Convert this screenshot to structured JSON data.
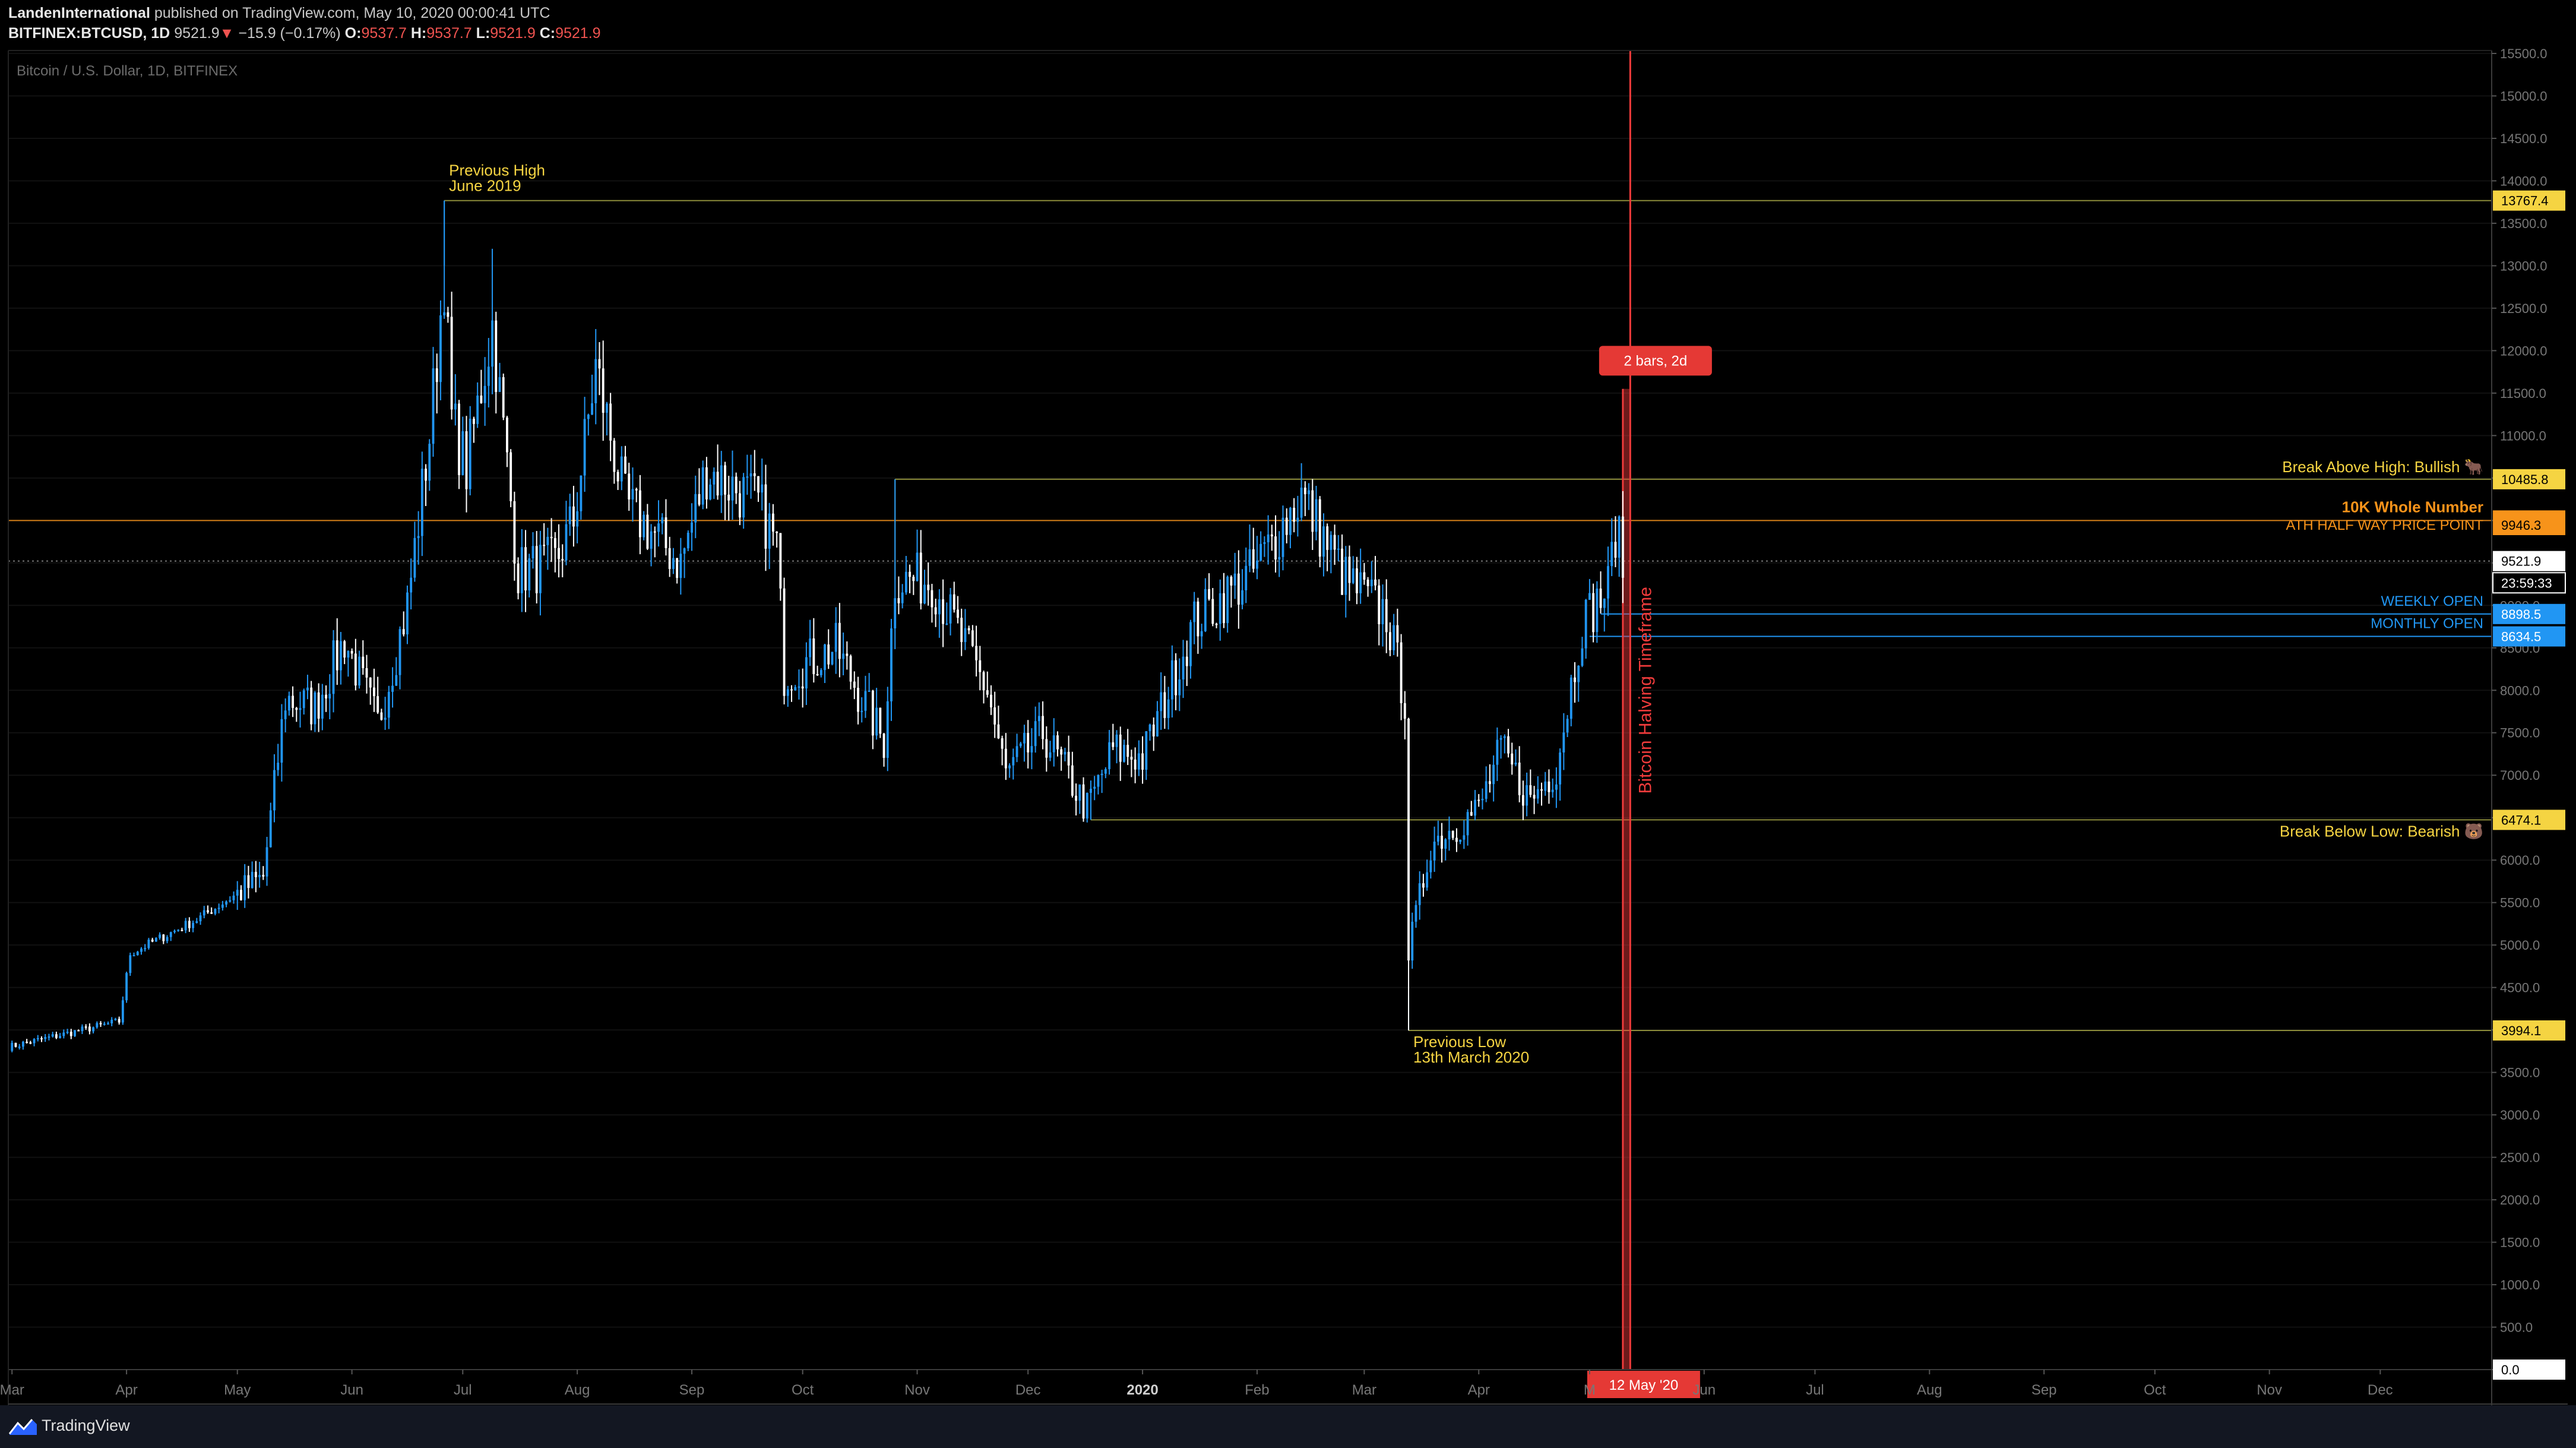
{
  "header": {
    "author": "LandenInternational",
    "published_text": "published on TradingView.com, May 10, 2020 00:00:41 UTC",
    "symbol": "BITFINEX:BTCUSD, 1D",
    "last": "9521.9",
    "change_arrow": "▼",
    "change": "−15.9 (−0.17%)",
    "o_label": "O:",
    "o_value": "9537.7",
    "h_label": "H:",
    "h_value": "9537.7",
    "l_label": "L:",
    "l_value": "9521.9",
    "c_label": "C:",
    "c_value": "9521.9"
  },
  "footer": {
    "brand": "TradingView"
  },
  "colors": {
    "background": "#000000",
    "up": "#2196f3",
    "down": "#ffffff",
    "level_line": "#8b8b3a",
    "highlight_yellow": "#f5d442",
    "orange": "#f7931a",
    "blue_label": "#2196f3",
    "red": "#ef3b3b"
  },
  "chart_data": {
    "type": "candlestick",
    "title": "Bitcoin / U.S. Dollar, 1D, BITFINEX",
    "ylim": [
      0,
      15500
    ],
    "y_ticks": [
      "0.0",
      "500.0",
      "1000.0",
      "1500.0",
      "2000.0",
      "2500.0",
      "3000.0",
      "3500.0",
      "4000.0",
      "4500.0",
      "5000.0",
      "5500.0",
      "6000.0",
      "6500.0",
      "7000.0",
      "7500.0",
      "8000.0",
      "8500.0",
      "9000.0",
      "9500.0",
      "10000.0",
      "10500.0",
      "11000.0",
      "11500.0",
      "12000.0",
      "12500.0",
      "13000.0",
      "13500.0",
      "14000.0",
      "14500.0",
      "15000.0",
      "15500.0"
    ],
    "x_ticks": [
      {
        "label": "Mar",
        "date": "2019-03-01"
      },
      {
        "label": "Apr",
        "date": "2019-04-01"
      },
      {
        "label": "May",
        "date": "2019-05-01"
      },
      {
        "label": "Jun",
        "date": "2019-06-01"
      },
      {
        "label": "Jul",
        "date": "2019-07-01"
      },
      {
        "label": "Aug",
        "date": "2019-08-01"
      },
      {
        "label": "Sep",
        "date": "2019-09-01"
      },
      {
        "label": "Oct",
        "date": "2019-10-01"
      },
      {
        "label": "Nov",
        "date": "2019-11-01"
      },
      {
        "label": "Dec",
        "date": "2019-12-01"
      },
      {
        "label": "2020",
        "date": "2020-01-01",
        "bold": true
      },
      {
        "label": "Feb",
        "date": "2020-02-01"
      },
      {
        "label": "Mar",
        "date": "2020-03-01"
      },
      {
        "label": "Apr",
        "date": "2020-04-01"
      },
      {
        "label": "M",
        "date": "2020-05-01"
      },
      {
        "label": "Jun",
        "date": "2020-06-01"
      },
      {
        "label": "Jul",
        "date": "2020-07-01"
      },
      {
        "label": "Aug",
        "date": "2020-08-01"
      },
      {
        "label": "Sep",
        "date": "2020-09-01"
      },
      {
        "label": "Oct",
        "date": "2020-10-01"
      },
      {
        "label": "Nov",
        "date": "2020-11-01"
      },
      {
        "label": "Dec",
        "date": "2020-12-01"
      }
    ],
    "price_path": [
      {
        "date": "2019-02-28",
        "price": 3800
      },
      {
        "date": "2019-03-30",
        "price": 4100
      },
      {
        "date": "2019-04-02",
        "price": 4900
      },
      {
        "date": "2019-04-20",
        "price": 5300
      },
      {
        "date": "2019-05-08",
        "price": 5800
      },
      {
        "date": "2019-05-14",
        "price": 7900
      },
      {
        "date": "2019-05-22",
        "price": 7800
      },
      {
        "date": "2019-05-30",
        "price": 8600
      },
      {
        "date": "2019-06-08",
        "price": 7600
      },
      {
        "date": "2019-06-16",
        "price": 9000
      },
      {
        "date": "2019-06-22",
        "price": 11000
      },
      {
        "date": "2019-06-26",
        "price": 12900
      },
      {
        "date": "2019-06-28",
        "price": 11200
      },
      {
        "date": "2019-07-02",
        "price": 10600
      },
      {
        "date": "2019-07-09",
        "price": 12300
      },
      {
        "date": "2019-07-16",
        "price": 9400
      },
      {
        "date": "2019-07-26",
        "price": 9500
      },
      {
        "date": "2019-07-31",
        "price": 10000
      },
      {
        "date": "2019-08-06",
        "price": 11800
      },
      {
        "date": "2019-08-14",
        "price": 10200
      },
      {
        "date": "2019-08-29",
        "price": 9500
      },
      {
        "date": "2019-09-05",
        "price": 10600
      },
      {
        "date": "2019-09-19",
        "price": 10200
      },
      {
        "date": "2019-09-24",
        "price": 9700
      },
      {
        "date": "2019-09-26",
        "price": 8200
      },
      {
        "date": "2019-10-10",
        "price": 8500
      },
      {
        "date": "2019-10-23",
        "price": 7400
      },
      {
        "date": "2019-10-26",
        "price": 9300
      },
      {
        "date": "2019-11-05",
        "price": 9300
      },
      {
        "date": "2019-11-20",
        "price": 8000
      },
      {
        "date": "2019-11-25",
        "price": 7000
      },
      {
        "date": "2019-12-05",
        "price": 7500
      },
      {
        "date": "2019-12-17",
        "price": 6600
      },
      {
        "date": "2019-12-24",
        "price": 7300
      },
      {
        "date": "2020-01-01",
        "price": 7200
      },
      {
        "date": "2020-01-15",
        "price": 8800
      },
      {
        "date": "2020-01-31",
        "price": 9400
      },
      {
        "date": "2020-02-13",
        "price": 10300
      },
      {
        "date": "2020-02-25",
        "price": 9300
      },
      {
        "date": "2020-03-07",
        "price": 8900
      },
      {
        "date": "2020-03-12",
        "price": 7900
      },
      {
        "date": "2020-03-13",
        "price": 4900
      },
      {
        "date": "2020-03-19",
        "price": 6200
      },
      {
        "date": "2020-04-01",
        "price": 6600
      },
      {
        "date": "2020-04-07",
        "price": 7300
      },
      {
        "date": "2020-04-15",
        "price": 6700
      },
      {
        "date": "2020-04-22",
        "price": 7100
      },
      {
        "date": "2020-04-29",
        "price": 8800
      },
      {
        "date": "2020-05-06",
        "price": 9200
      },
      {
        "date": "2020-05-08",
        "price": 9900
      },
      {
        "date": "2020-05-10",
        "price": 9521.9
      }
    ],
    "anchors": [
      {
        "date": "2019-06-26",
        "type": "high",
        "value": 13767.4
      },
      {
        "date": "2020-03-13",
        "type": "low",
        "value": 3994.1
      },
      {
        "date": "2019-10-26",
        "type": "high",
        "value": 10485.8
      },
      {
        "date": "2020-02-13",
        "type": "high",
        "value": 10500
      },
      {
        "date": "2019-12-18",
        "type": "low",
        "value": 6474.1
      },
      {
        "date": "2020-05-08",
        "type": "high",
        "value": 10050
      },
      {
        "date": "2019-07-09",
        "type": "high",
        "value": 13200
      }
    ],
    "levels": [
      {
        "value": 13767.4,
        "start": "2019-06-26",
        "label": "13767.4"
      },
      {
        "value": 10485.8,
        "start": "2019-10-26",
        "label": "10485.8"
      },
      {
        "value": 10000.0,
        "start": "2019-02-28",
        "label": "10000.0"
      },
      {
        "value": 6474.1,
        "start": "2019-12-18",
        "label": "6474.1"
      },
      {
        "value": 3994.1,
        "start": "2020-03-13",
        "label": "3994.1"
      },
      {
        "value": 8898.5,
        "start": "2020-05-04",
        "label": "8898.5"
      },
      {
        "value": 8634.5,
        "start": "2020-05-01",
        "label": "8634.5"
      }
    ],
    "price_labels": [
      {
        "value": 9946.3,
        "label": "9946.3"
      },
      {
        "value": 9521.9,
        "label": "9521.9"
      },
      {
        "value": 9266,
        "label": "23:59:33"
      },
      {
        "value": 0,
        "label": "0.0"
      }
    ],
    "annotations": {
      "previous_high_1": "Previous High",
      "previous_high_2": "June 2019",
      "previous_low_1": "Previous Low",
      "previous_low_2": "13th March 2020",
      "break_above": "Break Above High: Bullish 🐂",
      "ten_k": "10K Whole Number",
      "ath_half": "ATH HALF WAY PRICE POINT",
      "weekly_open": "WEEKLY OPEN",
      "monthly_open": "MONTHLY OPEN",
      "break_below": "Break Below Low: Bearish 🐻",
      "halving": "Bitcoin Halving Timeframe",
      "measure": "2 bars, 2d",
      "halving_date": "12 May '20"
    },
    "halving_range": [
      "2020-05-10",
      "2020-05-12"
    ]
  }
}
